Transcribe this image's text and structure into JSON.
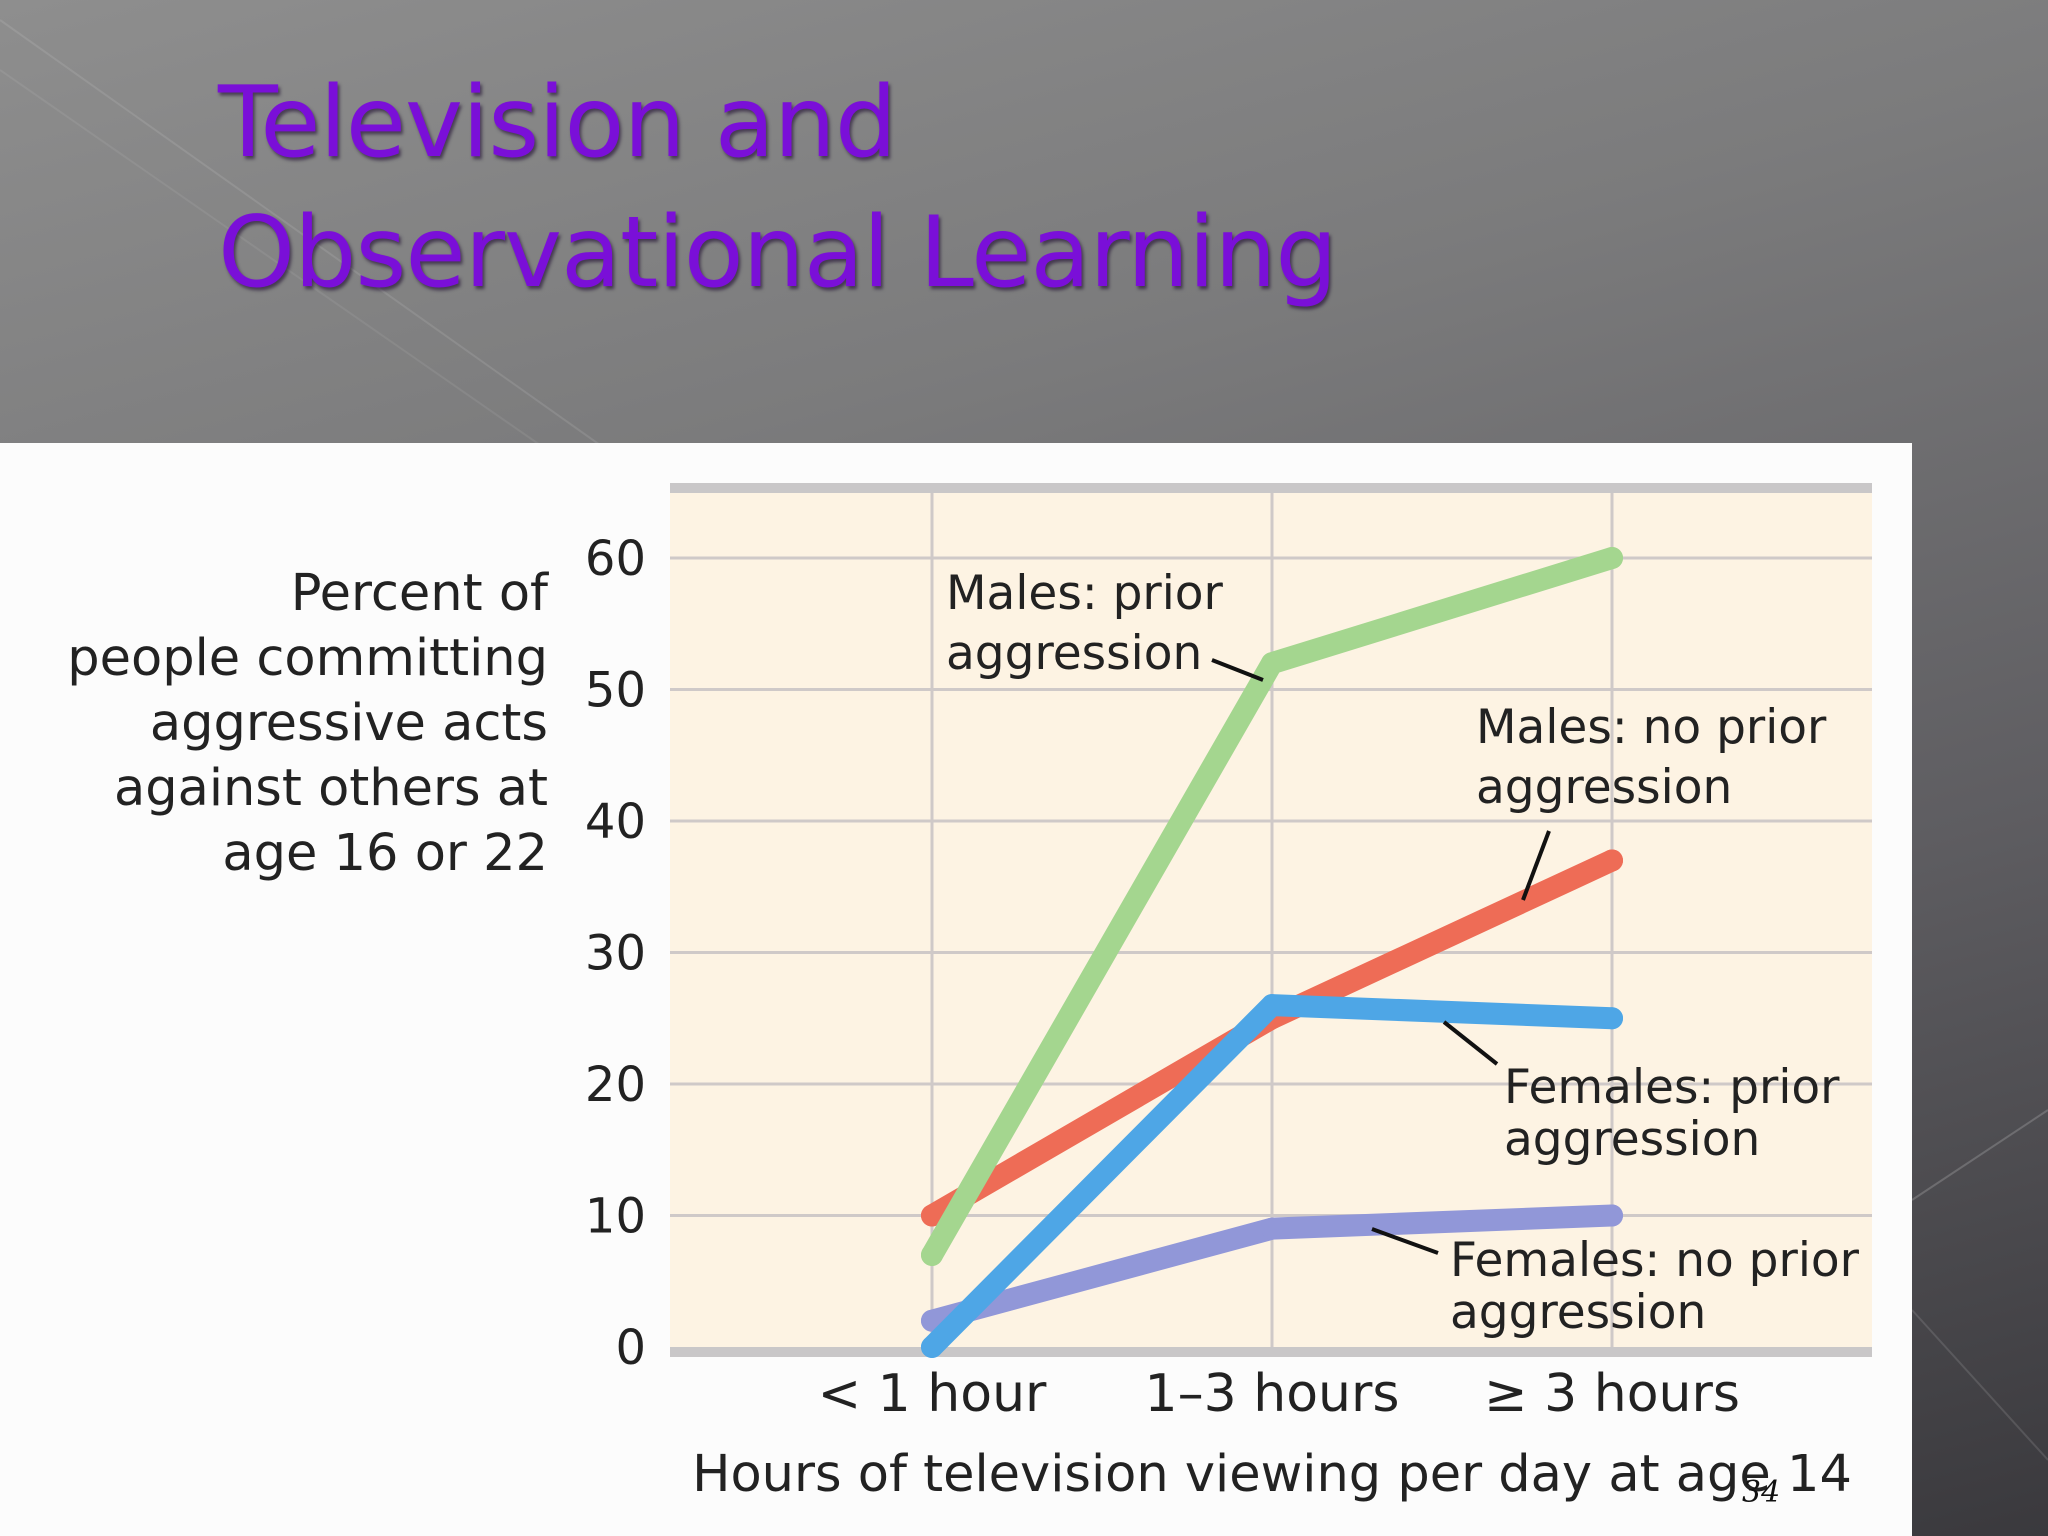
{
  "slide": {
    "title_lines": [
      "Television and",
      "Observational Learning"
    ],
    "page_number": "34"
  },
  "chart_data": {
    "type": "line",
    "title": "",
    "ylabel_lines": [
      "Percent of",
      "people committing",
      "aggressive acts",
      "against others at",
      "age 16 or 22"
    ],
    "xlabel": "Hours of television viewing per day at age 14",
    "categories": [
      "< 1 hour",
      "1–3 hours",
      "≥ 3 hours"
    ],
    "ylim": [
      0,
      65
    ],
    "yticks": [
      0,
      10,
      20,
      30,
      40,
      50,
      60
    ],
    "grid": true,
    "series": [
      {
        "name": "Males: prior aggression",
        "label_lines": [
          "Males: prior",
          "aggression"
        ],
        "color": "#a4d68f",
        "values": [
          7,
          52,
          60
        ]
      },
      {
        "name": "Males: no prior aggression",
        "label_lines": [
          "Males: no prior",
          "aggression"
        ],
        "color": "#ee6c56",
        "values": [
          10,
          25,
          37
        ]
      },
      {
        "name": "Females: prior aggression",
        "label_lines": [
          "Females: prior",
          "aggression"
        ],
        "color": "#4ea6e6",
        "values": [
          0,
          26,
          25
        ]
      },
      {
        "name": "Females: no prior aggression",
        "label_lines": [
          "Females: no prior",
          "aggression"
        ],
        "color": "#9197d8",
        "values": [
          2,
          9,
          10
        ]
      }
    ],
    "colors": {
      "plot_background": "#fdf3e3",
      "grid": "#cfc9c8",
      "axis": "#c9c7c8"
    }
  }
}
